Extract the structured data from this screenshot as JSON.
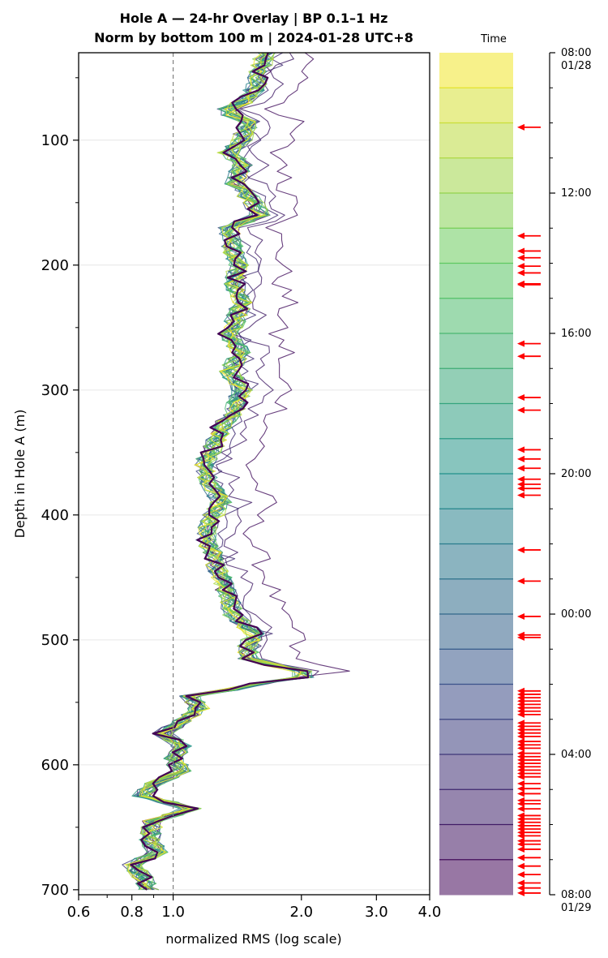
{
  "chart_data": {
    "type": "line",
    "title_line1": "Hole A — 24-hr Overlay  |  BP 0.1–1 Hz",
    "title_line2": "Norm by bottom 100 m  |  2024-01-28 UTC+8",
    "xlabel": "normalized RMS  (log scale)",
    "ylabel": "Depth in Hole A (m)",
    "x_scale": "log",
    "xlim": [
      0.6,
      4.0
    ],
    "ylim": [
      704,
      30
    ],
    "x_ticks": [
      0.6,
      0.8,
      1.0,
      2.0,
      3.0,
      4.0
    ],
    "x_tick_labels": [
      "0.6",
      "0.8",
      "1.0",
      "2.0",
      "3.0",
      "4.0"
    ],
    "y_ticks": [
      100,
      200,
      300,
      400,
      500,
      600,
      700
    ],
    "y_tick_labels": [
      "100",
      "200",
      "300",
      "400",
      "500",
      "600",
      "700"
    ],
    "reference_line_x": 1.0,
    "grid": "horizontal",
    "colormap": [
      "#440154",
      "#3b528b",
      "#21918c",
      "#5ec962",
      "#fde725"
    ],
    "depth_profile": [
      {
        "d": 30,
        "x": 1.65
      },
      {
        "d": 45,
        "x": 1.6
      },
      {
        "d": 60,
        "x": 1.55
      },
      {
        "d": 70,
        "x": 1.45
      },
      {
        "d": 77,
        "x": 1.3
      },
      {
        "d": 85,
        "x": 1.5
      },
      {
        "d": 100,
        "x": 1.45
      },
      {
        "d": 110,
        "x": 1.35
      },
      {
        "d": 120,
        "x": 1.45
      },
      {
        "d": 135,
        "x": 1.4
      },
      {
        "d": 150,
        "x": 1.55
      },
      {
        "d": 160,
        "x": 1.6
      },
      {
        "d": 170,
        "x": 1.35
      },
      {
        "d": 185,
        "x": 1.38
      },
      {
        "d": 200,
        "x": 1.42
      },
      {
        "d": 215,
        "x": 1.4
      },
      {
        "d": 230,
        "x": 1.45
      },
      {
        "d": 245,
        "x": 1.4
      },
      {
        "d": 255,
        "x": 1.35
      },
      {
        "d": 270,
        "x": 1.45
      },
      {
        "d": 285,
        "x": 1.35
      },
      {
        "d": 300,
        "x": 1.45
      },
      {
        "d": 315,
        "x": 1.4
      },
      {
        "d": 330,
        "x": 1.3
      },
      {
        "d": 345,
        "x": 1.25
      },
      {
        "d": 360,
        "x": 1.18
      },
      {
        "d": 375,
        "x": 1.22
      },
      {
        "d": 390,
        "x": 1.3
      },
      {
        "d": 405,
        "x": 1.22
      },
      {
        "d": 420,
        "x": 1.2
      },
      {
        "d": 435,
        "x": 1.25
      },
      {
        "d": 450,
        "x": 1.3
      },
      {
        "d": 465,
        "x": 1.35
      },
      {
        "d": 480,
        "x": 1.38
      },
      {
        "d": 495,
        "x": 1.55
      },
      {
        "d": 505,
        "x": 1.5
      },
      {
        "d": 515,
        "x": 1.5
      },
      {
        "d": 520,
        "x": 1.7
      },
      {
        "d": 528,
        "x": 2.2
      },
      {
        "d": 535,
        "x": 1.6
      },
      {
        "d": 545,
        "x": 1.1
      },
      {
        "d": 555,
        "x": 1.15
      },
      {
        "d": 565,
        "x": 1.05
      },
      {
        "d": 575,
        "x": 0.95
      },
      {
        "d": 585,
        "x": 1.05
      },
      {
        "d": 595,
        "x": 1.0
      },
      {
        "d": 605,
        "x": 1.05
      },
      {
        "d": 615,
        "x": 0.9
      },
      {
        "d": 625,
        "x": 0.85
      },
      {
        "d": 635,
        "x": 1.1
      },
      {
        "d": 645,
        "x": 0.9
      },
      {
        "d": 660,
        "x": 0.88
      },
      {
        "d": 670,
        "x": 0.92
      },
      {
        "d": 680,
        "x": 0.8
      },
      {
        "d": 690,
        "x": 0.85
      },
      {
        "d": 700,
        "x": 0.88
      }
    ],
    "series_count": 24,
    "colorbar": {
      "title": "Time",
      "ticks": [
        {
          "pos": 0.0,
          "label1": "08:00",
          "label2": "01/28"
        },
        {
          "pos": 0.1667,
          "label1": "12:00",
          "label2": ""
        },
        {
          "pos": 0.3333,
          "label1": "16:00",
          "label2": ""
        },
        {
          "pos": 0.5,
          "label1": "20:00",
          "label2": ""
        },
        {
          "pos": 0.6667,
          "label1": "00:00",
          "label2": ""
        },
        {
          "pos": 0.8333,
          "label1": "04:00",
          "label2": ""
        },
        {
          "pos": 1.0,
          "label1": "08:00",
          "label2": "01/29"
        }
      ],
      "arrow_color": "#ff0000",
      "event_times": [
        0.0885,
        0.2175,
        0.2355,
        0.2435,
        0.2535,
        0.2615,
        0.2745,
        0.2755,
        0.3455,
        0.3605,
        0.4095,
        0.4245,
        0.4715,
        0.4825,
        0.4935,
        0.5065,
        0.5125,
        0.5175,
        0.5255,
        0.5905,
        0.6275,
        0.6695,
        0.6915,
        0.6945,
        0.758,
        0.762,
        0.766,
        0.77,
        0.774,
        0.778,
        0.782,
        0.786,
        0.796,
        0.8,
        0.804,
        0.808,
        0.812,
        0.818,
        0.822,
        0.826,
        0.832,
        0.836,
        0.84,
        0.844,
        0.848,
        0.852,
        0.856,
        0.86,
        0.868,
        0.874,
        0.88,
        0.888,
        0.892,
        0.898,
        0.906,
        0.91,
        0.914,
        0.918,
        0.922,
        0.926,
        0.93,
        0.936,
        0.94,
        0.946,
        0.956,
        0.966,
        0.976,
        0.986,
        0.992,
        0.998
      ]
    }
  }
}
